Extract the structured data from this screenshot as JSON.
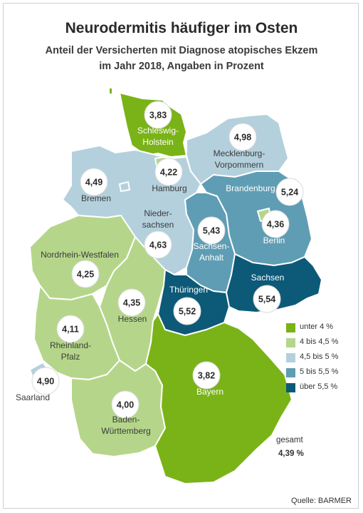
{
  "title": "Neurodermitis häufiger im Osten",
  "subtitle_line1": "Anteil der Versicherten mit Diagnose atopisches Ekzem",
  "subtitle_line2": "im Jahr 2018, Angaben in Prozent",
  "legend": [
    {
      "label": "unter 4 %",
      "color": "#7ab317"
    },
    {
      "label": "4 bis 4,5 %",
      "color": "#b5d68a"
    },
    {
      "label": "4,5 bis 5 %",
      "color": "#b4d0dd"
    },
    {
      "label": "5 bis 5,5 %",
      "color": "#5f9db4"
    },
    {
      "label": "über 5,5 %",
      "color": "#0c5a78"
    }
  ],
  "states": [
    {
      "name": "Schleswig-Holstein",
      "value": "3,83"
    },
    {
      "name": "Mecklenburg-Vorpommern",
      "value": "4,98"
    },
    {
      "name": "Hamburg",
      "value": "4,22"
    },
    {
      "name": "Bremen",
      "value": "4,49"
    },
    {
      "name": "Niedersachsen",
      "value": "4,63"
    },
    {
      "name": "Brandenburg",
      "value": "5,24"
    },
    {
      "name": "Berlin",
      "value": "4,36"
    },
    {
      "name": "Sachsen-Anhalt",
      "value": "5,43"
    },
    {
      "name": "Nordrhein-Westfalen",
      "value": "4,25"
    },
    {
      "name": "Hessen",
      "value": "4,35"
    },
    {
      "name": "Thüringen",
      "value": "5,52"
    },
    {
      "name": "Sachsen",
      "value": "5,54"
    },
    {
      "name": "Rheinland-Pfalz",
      "value": "4,11"
    },
    {
      "name": "Saarland",
      "value": "4,90"
    },
    {
      "name": "Bayern",
      "value": "3,82"
    },
    {
      "name": "Baden-Württemberg",
      "value": "4,00"
    }
  ],
  "labels": {
    "sh1": "Schleswig-",
    "sh2": "Holstein",
    "mv1": "Mecklenburg-",
    "mv2": "Vorpommern",
    "hh": "Hamburg",
    "hb": "Bremen",
    "ni1": "Nieder-",
    "ni2": "sachsen",
    "bb": "Brandenburg",
    "be": "Berlin",
    "st1": "Sachsen-",
    "st2": "Anhalt",
    "nw": "Nordrhein-Westfalen",
    "he": "Hessen",
    "th": "Thüringen",
    "sn": "Sachsen",
    "rp1": "Rheinland-",
    "rp2": "Pfalz",
    "sl": "Saarland",
    "by": "Bayern",
    "bw1": "Baden-",
    "bw2": "Württemberg"
  },
  "total_label": "gesamt",
  "total_value": "4,39 %",
  "source": "Quelle: BARMER"
}
